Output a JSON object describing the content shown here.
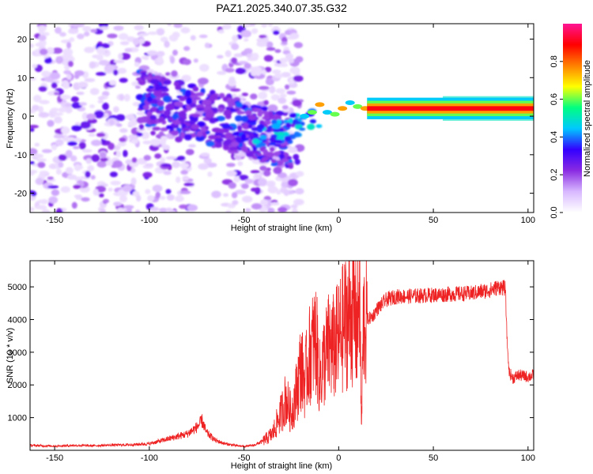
{
  "figure": {
    "title": "PAZ1.2025.340.07.35.G32"
  },
  "chart_data": [
    {
      "type": "heatmap",
      "title": "PAZ1.2025.340.07.35.G32",
      "xlabel": "Height of straight line (km)",
      "ylabel": "Frequency (Hz)",
      "xlim": [
        -163,
        103
      ],
      "ylim": [
        -25,
        24
      ],
      "xticks": [
        -150,
        -100,
        -50,
        0,
        50,
        100
      ],
      "yticks": [
        -20,
        -10,
        0,
        10,
        20
      ],
      "xtick_labels": [
        "-150",
        "-100",
        "-50",
        "0",
        "50",
        "100"
      ],
      "ytick_labels": [
        "-20",
        "-10",
        "0",
        "10",
        "20"
      ],
      "colorbar": {
        "label": "Normalized spectral amplitude",
        "range": [
          0,
          1
        ],
        "ticks": [
          0.0,
          0.2,
          0.4,
          0.6,
          0.8
        ],
        "tick_labels": [
          "0.0",
          "0.2",
          "0.4",
          "0.6",
          "0.8"
        ],
        "colormap": [
          "#ffffff",
          "#d8b8ff",
          "#8a2be2",
          "#3300ff",
          "#00c8ff",
          "#00ff80",
          "#ffff00",
          "#ff8000",
          "#ff0000",
          "#ff1493"
        ]
      },
      "features": [
        {
          "name": "stable-carrier-line",
          "x_range": [
            -10,
            103
          ],
          "frequency_hz": 2,
          "peak_amplitude": 1.0
        },
        {
          "name": "diffuse-scatter",
          "x_range": [
            -163,
            -20
          ],
          "frequency_range_hz": [
            -25,
            24
          ],
          "amplitude_range": [
            0.05,
            0.3
          ]
        },
        {
          "name": "descending-band",
          "x_range": [
            -105,
            -25
          ],
          "frequency_range_hz": [
            -10,
            5
          ],
          "amplitude_range": [
            0.2,
            0.4
          ]
        }
      ]
    },
    {
      "type": "line",
      "title": "",
      "xlabel": "Height of straight line (km)",
      "ylabel": "SNR (10 * v/v)",
      "xlim": [
        -163,
        103
      ],
      "ylim": [
        0,
        5800
      ],
      "xticks": [
        -150,
        -100,
        -50,
        0,
        50,
        100
      ],
      "yticks": [
        1000,
        2000,
        3000,
        4000,
        5000
      ],
      "xtick_labels": [
        "-150",
        "-100",
        "-50",
        "0",
        "50",
        "100"
      ],
      "ytick_labels": [
        "1000",
        "2000",
        "3000",
        "4000",
        "5000"
      ],
      "series": [
        {
          "name": "SNR",
          "color": "#ee2222",
          "x": [
            -163,
            -150,
            -140,
            -130,
            -120,
            -110,
            -100,
            -90,
            -80,
            -75,
            -72,
            -70,
            -65,
            -60,
            -55,
            -50,
            -45,
            -40,
            -35,
            -30,
            -28,
            -25,
            -22,
            -20,
            -18,
            -15,
            -12,
            -10,
            -8,
            -5,
            -3,
            0,
            2,
            5,
            8,
            10,
            11,
            12,
            13,
            15,
            18,
            20,
            25,
            30,
            40,
            50,
            60,
            70,
            80,
            85,
            88,
            89,
            90,
            92,
            95,
            100,
            103
          ],
          "values": [
            150,
            130,
            150,
            140,
            160,
            170,
            200,
            350,
            500,
            700,
            900,
            550,
            300,
            200,
            150,
            120,
            150,
            280,
            500,
            1200,
            1600,
            1100,
            1900,
            2600,
            2100,
            3000,
            3400,
            2200,
            2700,
            3200,
            3100,
            3400,
            3700,
            4100,
            4200,
            3600,
            5800,
            500,
            3900,
            4000,
            4100,
            4300,
            4600,
            4700,
            4720,
            4750,
            4780,
            4800,
            4900,
            5000,
            4950,
            3300,
            2400,
            2200,
            2300,
            2250,
            2300
          ]
        }
      ]
    }
  ]
}
